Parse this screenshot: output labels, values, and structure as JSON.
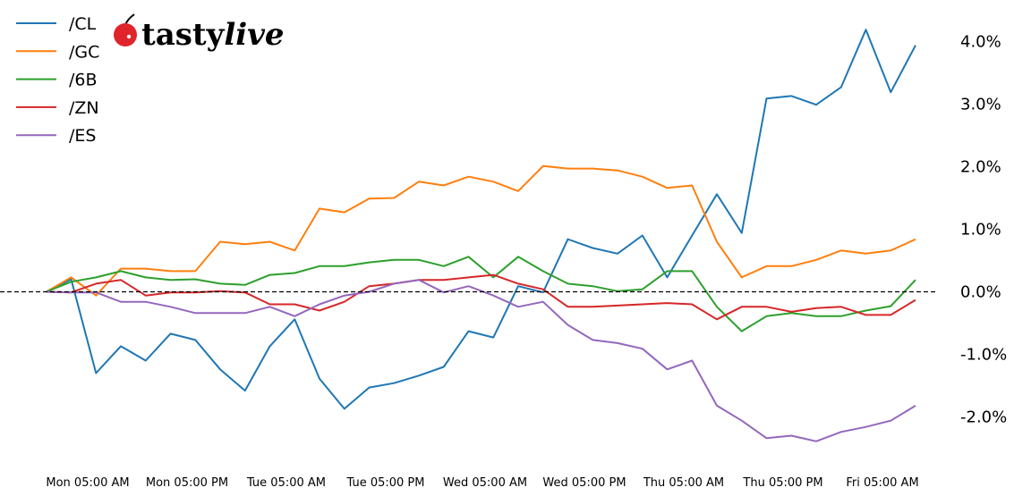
{
  "logo": {
    "text_main": "tasty",
    "text_italic": "live",
    "cherry_color": "#e0242b"
  },
  "chart_data": {
    "type": "line",
    "title": "",
    "xlabel": "",
    "ylabel": "",
    "ylim": [
      -2.55,
      4.45
    ],
    "y_ticks": [
      -2,
      -1,
      0,
      1,
      2,
      3,
      4
    ],
    "y_tick_labels": [
      "-2.0%",
      "-1.0%",
      "0.0%",
      "1.0%",
      "2.0%",
      "3.0%",
      "4.0%"
    ],
    "y_axis_side": "right",
    "x_tick_labels": [
      "Mon 05:00 AM",
      "Mon 05:00 PM",
      "Tue 05:00 AM",
      "Tue 05:00 PM",
      "Wed 05:00 AM",
      "Wed 05:00 PM",
      "Thu 05:00 AM",
      "Thu 05:00 PM",
      "Fri 05:00 AM"
    ],
    "zero_line": {
      "value": 0,
      "style": "dashed",
      "color": "#000000"
    },
    "grid": false,
    "legend_placement": "top-left",
    "x": [
      "Mon 00:00",
      "Mon 03:00",
      "Mon 06:00",
      "Mon 09:00",
      "Mon 12:00",
      "Mon 15:00",
      "Mon 18:00",
      "Mon 21:00",
      "Tue 00:00",
      "Tue 03:00",
      "Tue 06:00",
      "Tue 09:00",
      "Tue 12:00",
      "Tue 15:00",
      "Tue 18:00",
      "Tue 21:00",
      "Wed 00:00",
      "Wed 03:00",
      "Wed 06:00",
      "Wed 09:00",
      "Wed 12:00",
      "Wed 15:00",
      "Wed 18:00",
      "Wed 21:00",
      "Thu 00:00",
      "Thu 03:00",
      "Thu 06:00",
      "Thu 09:00",
      "Thu 12:00",
      "Thu 15:00",
      "Thu 18:00",
      "Thu 21:00",
      "Fri 00:00",
      "Fri 03:00",
      "Fri 06:00",
      "Fri 09:00"
    ],
    "series": [
      {
        "name": "/CL",
        "color": "#1f77b4",
        "values": [
          0.0,
          0.2,
          -1.3,
          -0.87,
          -1.1,
          -0.67,
          -0.77,
          -1.24,
          -1.58,
          -0.87,
          -0.44,
          -1.39,
          -1.87,
          -1.53,
          -1.46,
          -1.34,
          -1.2,
          -0.63,
          -0.73,
          0.09,
          -0.01,
          0.84,
          0.7,
          0.61,
          0.9,
          0.23,
          0.9,
          1.56,
          0.94,
          3.09,
          3.13,
          2.99,
          3.27,
          4.19,
          3.19,
          3.94
        ]
      },
      {
        "name": "/GC",
        "color": "#ff7f0e",
        "values": [
          0.0,
          0.23,
          -0.06,
          0.37,
          0.37,
          0.33,
          0.33,
          0.8,
          0.76,
          0.8,
          0.66,
          1.33,
          1.27,
          1.49,
          1.5,
          1.76,
          1.7,
          1.84,
          1.76,
          1.61,
          2.01,
          1.97,
          1.97,
          1.94,
          1.84,
          1.66,
          1.7,
          0.8,
          0.23,
          0.41,
          0.41,
          0.51,
          0.66,
          0.61,
          0.66,
          0.84
        ]
      },
      {
        "name": "/6B",
        "color": "#2ca02c",
        "values": [
          0.0,
          0.16,
          0.23,
          0.33,
          0.23,
          0.19,
          0.2,
          0.13,
          0.11,
          0.27,
          0.3,
          0.41,
          0.41,
          0.47,
          0.51,
          0.51,
          0.41,
          0.56,
          0.23,
          0.56,
          0.33,
          0.13,
          0.09,
          0.01,
          0.04,
          0.33,
          0.33,
          -0.24,
          -0.63,
          -0.39,
          -0.34,
          -0.39,
          -0.39,
          -0.3,
          -0.23,
          0.19
        ]
      },
      {
        "name": "/ZN",
        "color": "#d62728",
        "values": [
          0.0,
          -0.01,
          0.13,
          0.19,
          -0.06,
          -0.01,
          -0.01,
          0.01,
          -0.01,
          -0.2,
          -0.2,
          -0.3,
          -0.16,
          0.09,
          0.13,
          0.19,
          0.19,
          0.23,
          0.27,
          0.13,
          0.04,
          -0.24,
          -0.24,
          -0.22,
          -0.2,
          -0.18,
          -0.2,
          -0.44,
          -0.24,
          -0.24,
          -0.32,
          -0.26,
          -0.24,
          -0.37,
          -0.37,
          -0.13
        ]
      },
      {
        "name": "/ES",
        "color": "#9467bd",
        "values": [
          0.0,
          -0.01,
          -0.01,
          -0.16,
          -0.16,
          -0.24,
          -0.34,
          -0.34,
          -0.34,
          -0.24,
          -0.39,
          -0.2,
          -0.06,
          0.0,
          0.13,
          0.19,
          -0.01,
          0.09,
          -0.06,
          -0.24,
          -0.16,
          -0.53,
          -0.77,
          -0.82,
          -0.91,
          -1.24,
          -1.1,
          -1.82,
          -2.06,
          -2.34,
          -2.3,
          -2.39,
          -2.24,
          -2.16,
          -2.06,
          -1.82
        ]
      }
    ]
  }
}
